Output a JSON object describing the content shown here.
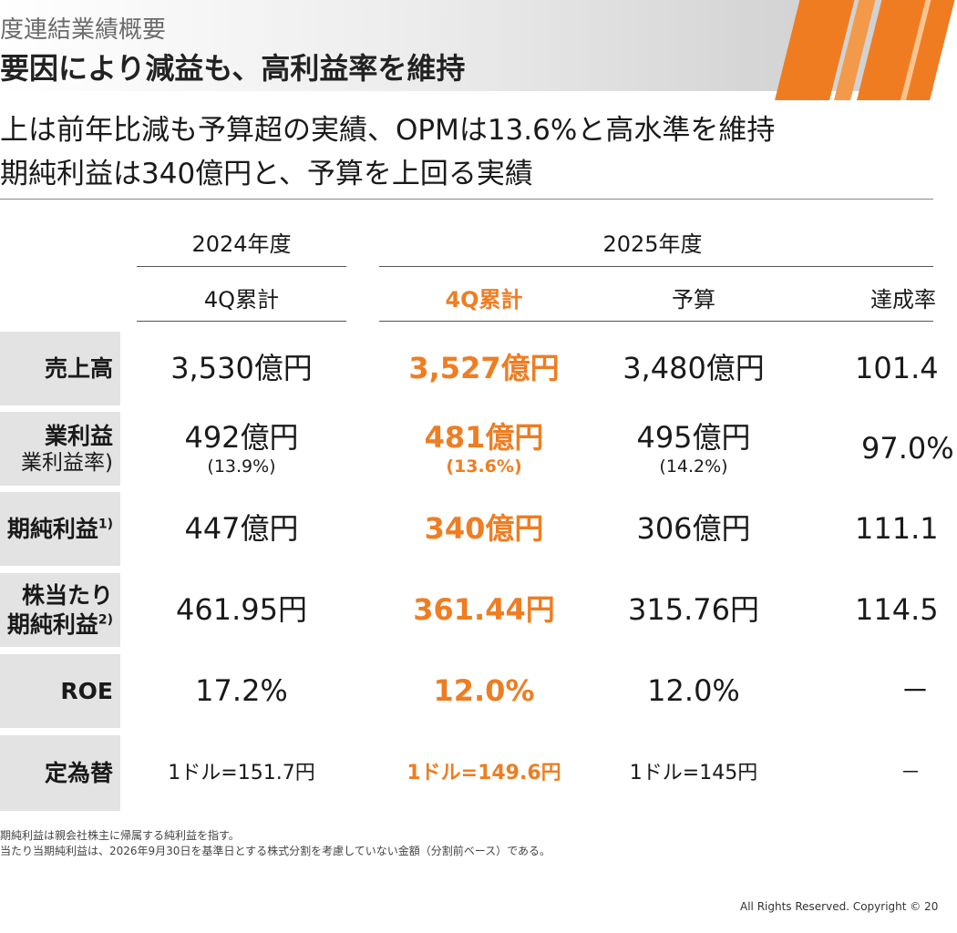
{
  "header": {
    "section_label": "度連結業績概要",
    "title": "要因により減益も、高利益率を維持",
    "colors": {
      "accent": "#ef7d22",
      "label_bg": "#e3e3e3"
    }
  },
  "bullets": [
    "上は前年比減も予算超の実績、OPMは13.6%と高水準を維持",
    "期純利益は340億円と、予算を上回る実績"
  ],
  "table": {
    "year_headers": [
      "2024年度",
      "2025年度"
    ],
    "sub_headers": [
      "4Q累計",
      "4Q累計",
      "予算",
      "達成率"
    ],
    "rows": [
      {
        "label": "売上高",
        "label_sub": "",
        "sup": "",
        "cells": [
          {
            "main": "3,530億円",
            "sub": ""
          },
          {
            "main": "3,527億円",
            "sub": ""
          },
          {
            "main": "3,480億円",
            "sub": ""
          },
          {
            "main": "101.4",
            "sub": ""
          }
        ]
      },
      {
        "label": "業利益",
        "label_sub": "業利益率)",
        "sup": "",
        "cells": [
          {
            "main": "492億円",
            "sub": "(13.9%)"
          },
          {
            "main": "481億円",
            "sub": "(13.6%)"
          },
          {
            "main": "495億円",
            "sub": "(14.2%)"
          },
          {
            "main": "97.0%",
            "sub": ""
          }
        ]
      },
      {
        "label": "期純利益",
        "label_sub": "",
        "sup": "1)",
        "cells": [
          {
            "main": "447億円",
            "sub": ""
          },
          {
            "main": "340億円",
            "sub": ""
          },
          {
            "main": "306億円",
            "sub": ""
          },
          {
            "main": "111.1",
            "sub": ""
          }
        ]
      },
      {
        "label": "株当たり",
        "label_sub": "期純利益",
        "sup": "2)",
        "cells": [
          {
            "main": "461.95円",
            "sub": ""
          },
          {
            "main": "361.44円",
            "sub": ""
          },
          {
            "main": "315.76円",
            "sub": ""
          },
          {
            "main": "114.5",
            "sub": ""
          }
        ]
      },
      {
        "label": "ROE",
        "label_sub": "",
        "sup": "",
        "cells": [
          {
            "main": "17.2%",
            "sub": ""
          },
          {
            "main": "12.0%",
            "sub": ""
          },
          {
            "main": "12.0%",
            "sub": ""
          },
          {
            "main": "－",
            "sub": ""
          }
        ]
      },
      {
        "label": "定為替",
        "label_sub": "",
        "sup": "",
        "cells": [
          {
            "main": "1ドル=151.7円",
            "sub": ""
          },
          {
            "main": "1ドル=149.6円",
            "sub": ""
          },
          {
            "main": "1ドル=145円",
            "sub": ""
          },
          {
            "main": "－",
            "sub": ""
          }
        ]
      }
    ]
  },
  "footnotes": [
    "期純利益は親会社株主に帰属する純利益を指す。",
    "当たり当期純利益は、2026年9月30日を基準日とする株式分割を考慮していない金額（分割前ベース）である。"
  ],
  "copyright": "All Rights Reserved. Copyright © 20"
}
